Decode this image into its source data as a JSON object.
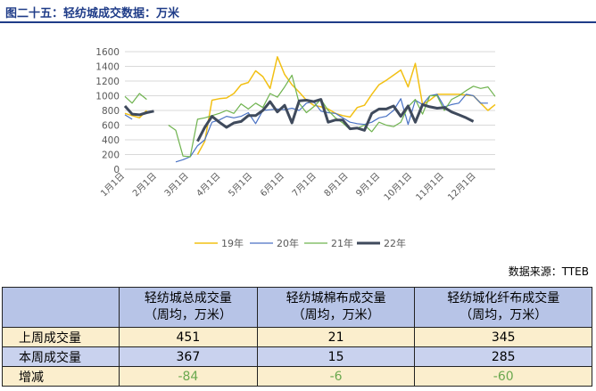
{
  "title": "图二十五：轻纺城成交数据：万米",
  "source": "数据来源：TTEB",
  "chart_data": {
    "type": "line",
    "ylim": [
      0,
      1600
    ],
    "yticks": [
      "0",
      "200",
      "400",
      "600",
      "800",
      "1000",
      "1200",
      "1400",
      "1600"
    ],
    "xlabels": [
      "1月1日",
      "2月1日",
      "3月1日",
      "4月1日",
      "5月1日",
      "6月1日",
      "7月1日",
      "8月1日",
      "9月1日",
      "10月1日",
      "11月1日",
      "12月1日"
    ],
    "legend_position": "bottom",
    "grid": true,
    "series": [
      {
        "name": "19年",
        "color": "#f2c014",
        "width": 1.5,
        "values": [
          760,
          730,
          700,
          800,
          null,
          null,
          null,
          null,
          null,
          null,
          200,
          380,
          940,
          960,
          970,
          1030,
          1150,
          1180,
          1340,
          1260,
          1100,
          1530,
          1290,
          1150,
          1050,
          940,
          870,
          850,
          820,
          760,
          730,
          710,
          840,
          870,
          1020,
          1150,
          1210,
          1280,
          1350,
          1120,
          1440,
          880,
          940,
          1020,
          1020,
          1020,
          1020,
          1010,
          1000,
          900,
          800,
          880
        ]
      },
      {
        "name": "20年",
        "color": "#4a72c4",
        "width": 1.2,
        "values": [
          740,
          680,
          null,
          null,
          null,
          null,
          null,
          100,
          130,
          170,
          320,
          400,
          640,
          670,
          720,
          700,
          720,
          770,
          620,
          800,
          810,
          820,
          810,
          830,
          800,
          900,
          920,
          790,
          770,
          760,
          700,
          640,
          620,
          610,
          640,
          700,
          720,
          800,
          960,
          610,
          940,
          880,
          1000,
          1020,
          850,
          880,
          900,
          1020,
          1000,
          900,
          900,
          null
        ]
      },
      {
        "name": "21年",
        "color": "#6fb34f",
        "width": 1.2,
        "values": [
          990,
          900,
          1030,
          950,
          null,
          null,
          600,
          530,
          180,
          170,
          680,
          700,
          730,
          760,
          800,
          760,
          890,
          820,
          900,
          840,
          1030,
          980,
          1120,
          1280,
          900,
          770,
          850,
          950,
          800,
          700,
          630,
          540,
          560,
          600,
          510,
          640,
          600,
          580,
          640,
          850,
          950,
          750,
          1000,
          1000,
          800,
          950,
          1000,
          1070,
          1130,
          1100,
          1120,
          990
        ]
      },
      {
        "name": "22年",
        "color": "#3f4a5c",
        "width": 3,
        "values": [
          860,
          750,
          740,
          770,
          790,
          null,
          null,
          null,
          null,
          null,
          380,
          570,
          720,
          640,
          570,
          630,
          650,
          730,
          730,
          800,
          920,
          780,
          870,
          630,
          930,
          940,
          920,
          950,
          640,
          670,
          670,
          550,
          560,
          530,
          760,
          820,
          820,
          860,
          720,
          860,
          640,
          880,
          850,
          830,
          840,
          780,
          740,
          700,
          650,
          null,
          null,
          null
        ]
      }
    ]
  },
  "table": {
    "header": {
      "blank": "",
      "c1": "轻纺城总成交量\n（周均，万米）",
      "c2": "轻纺城棉布成交量\n（周均，万米）",
      "c3": "轻纺城化纤布成交量\n（周均，万米）"
    },
    "rows": [
      {
        "label": "上周成交量",
        "v1": "451",
        "v2": "21",
        "v3": "345"
      },
      {
        "label": "本周成交量",
        "v1": "367",
        "v2": "15",
        "v3": "285"
      },
      {
        "label": "增减",
        "v1": "-84",
        "v2": "-6",
        "v3": "-60"
      }
    ]
  }
}
